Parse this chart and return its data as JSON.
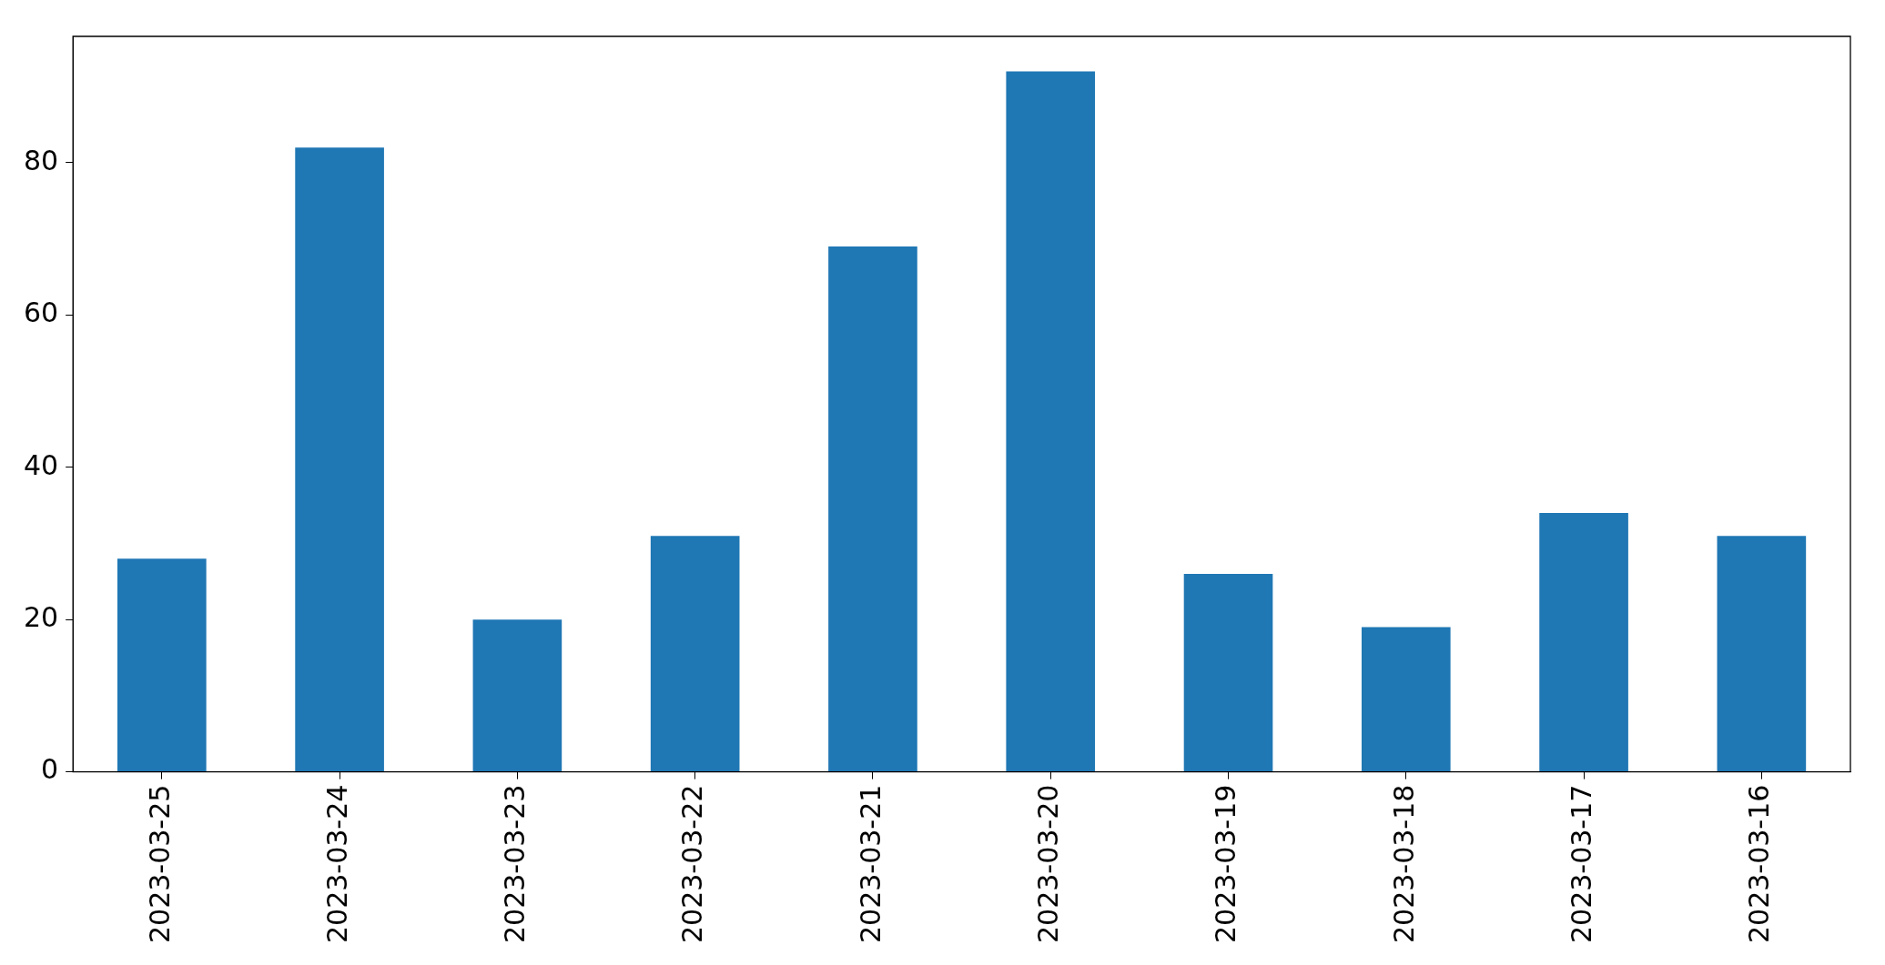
{
  "chart_data": {
    "type": "bar",
    "categories": [
      "2023-03-25",
      "2023-03-24",
      "2023-03-23",
      "2023-03-22",
      "2023-03-21",
      "2023-03-20",
      "2023-03-19",
      "2023-03-18",
      "2023-03-17",
      "2023-03-16"
    ],
    "values": [
      28,
      82,
      20,
      31,
      69,
      92,
      26,
      19,
      34,
      31
    ],
    "color": "#1f77b4",
    "ylim": [
      0,
      96.6
    ],
    "yticks": [
      0,
      20,
      40,
      60,
      80
    ],
    "grid": false,
    "legend": false
  }
}
